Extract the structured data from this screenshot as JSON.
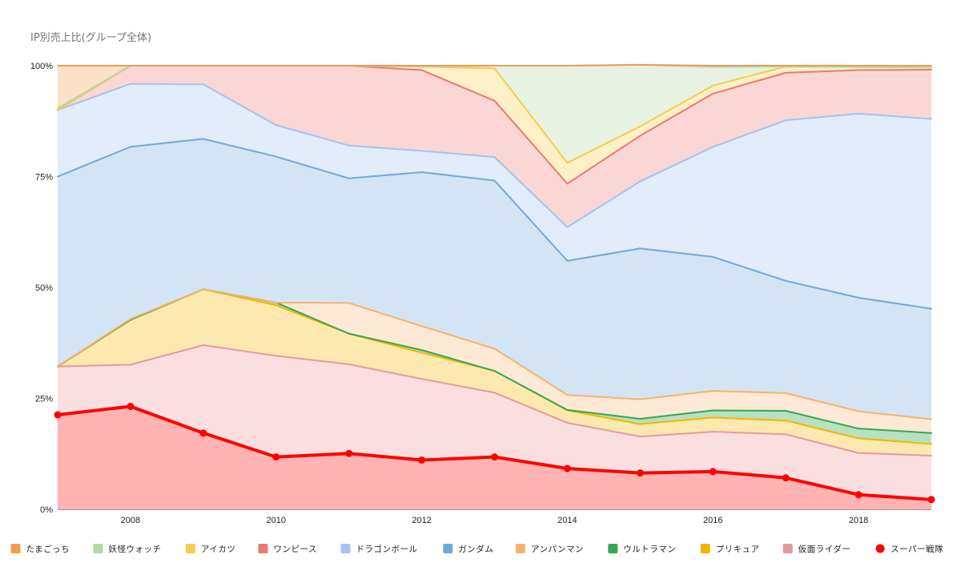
{
  "chart_data": {
    "type": "area",
    "stacked": true,
    "normalized_percent": true,
    "title": "IP別売上比(グループ全体)",
    "xlabel": "",
    "ylabel": "",
    "xlim": [
      2007,
      2019
    ],
    "ylim": [
      0,
      100
    ],
    "x": [
      2007,
      2008,
      2009,
      2010,
      2011,
      2012,
      2013,
      2014,
      2015,
      2016,
      2017,
      2018,
      2019
    ],
    "x_tick_labels": [
      "2008",
      "2010",
      "2012",
      "2014",
      "2016",
      "2018"
    ],
    "x_tick_values": [
      2008,
      2010,
      2012,
      2014,
      2016,
      2018
    ],
    "y_tick_labels": [
      "0%",
      "25%",
      "50%",
      "75%",
      "100%"
    ],
    "y_tick_values": [
      0,
      25,
      50,
      75,
      100
    ],
    "grid": true,
    "legend_position": "bottom",
    "series": [
      {
        "name": "スーパー戦隊",
        "color": "#ff0000",
        "fill": "#ffb3b3",
        "marker": true,
        "values": [
          21.3,
          23.2,
          17.2,
          11.8,
          12.6,
          11.1,
          11.8,
          9.2,
          8.2,
          8.5,
          7.1,
          3.3,
          2.2
        ]
      },
      {
        "name": "仮面ライダー",
        "color": "#e49a9a",
        "fill": "#fbdfe0",
        "values": [
          10.9,
          9.4,
          19.8,
          22.8,
          20.1,
          18.3,
          14.5,
          10.3,
          8.2,
          9.0,
          9.8,
          9.4,
          9.9
        ]
      },
      {
        "name": "プリキュア",
        "color": "#f4b400",
        "fill": "#fde9b0",
        "values": [
          0.0,
          10.1,
          12.6,
          11.4,
          6.9,
          5.9,
          4.9,
          2.8,
          2.8,
          3.2,
          3.1,
          3.3,
          2.6
        ]
      },
      {
        "name": "ウルトラマン",
        "color": "#34a853",
        "fill": "#b7e1c0",
        "values": [
          0.0,
          0.0,
          0.0,
          0.6,
          0.0,
          0.6,
          0.0,
          0.1,
          1.2,
          1.6,
          2.2,
          2.2,
          2.5
        ]
      },
      {
        "name": "アンパンマン",
        "color": "#f6b26b",
        "fill": "#fde9d5",
        "values": [
          0.0,
          0.2,
          0.0,
          0.0,
          6.9,
          5.4,
          5.0,
          3.4,
          4.4,
          4.4,
          4.0,
          3.9,
          3.1
        ]
      },
      {
        "name": "ガンダム",
        "color": "#6fa8dc",
        "fill": "#d3e5f5",
        "values": [
          42.8,
          38.8,
          33.9,
          32.9,
          28.1,
          34.7,
          37.9,
          30.2,
          34.0,
          30.2,
          25.3,
          25.6,
          24.9
        ]
      },
      {
        "name": "ドラゴンボール",
        "color": "#a4c2f4",
        "fill": "#e2ecfb",
        "values": [
          15.0,
          14.2,
          12.3,
          7.1,
          7.4,
          4.8,
          5.3,
          7.6,
          15.1,
          24.8,
          36.2,
          41.5,
          42.8
        ]
      },
      {
        "name": "ワンピース",
        "color": "#ea7a6e",
        "fill": "#fad7d4",
        "values": [
          0.0,
          4.1,
          4.2,
          13.4,
          18.0,
          18.2,
          12.7,
          9.8,
          10.3,
          12.0,
          10.7,
          9.8,
          11.1
        ]
      },
      {
        "name": "アイカツ",
        "color": "#f7cb4d",
        "fill": "#fdf0c6",
        "values": [
          0.0,
          0.0,
          0.0,
          0.0,
          0.0,
          0.8,
          7.3,
          4.7,
          2.1,
          1.8,
          1.4,
          0.7,
          0.5
        ]
      },
      {
        "name": "妖怪ウォッチ",
        "color": "#b6d7a8",
        "fill": "#e8f2e2",
        "values": [
          0.4,
          0.0,
          0.0,
          0.0,
          0.0,
          0.0,
          0.6,
          21.9,
          13.9,
          4.2,
          0.0,
          0.0,
          0.0
        ]
      },
      {
        "name": "たまごっち",
        "color": "#f39c50",
        "fill": "#fde0c8",
        "values": [
          9.6,
          0.0,
          0.0,
          0.0,
          0.0,
          0.2,
          0.0,
          0.0,
          0.0,
          0.3,
          0.2,
          0.3,
          0.4
        ]
      }
    ],
    "legend_order": [
      "たまごっち",
      "妖怪ウォッチ",
      "アイカツ",
      "ワンピース",
      "ドラゴンボール",
      "ガンダム",
      "アンパンマン",
      "ウルトラマン",
      "プリキュア",
      "仮面ライダー",
      "スーパー戦隊"
    ]
  }
}
